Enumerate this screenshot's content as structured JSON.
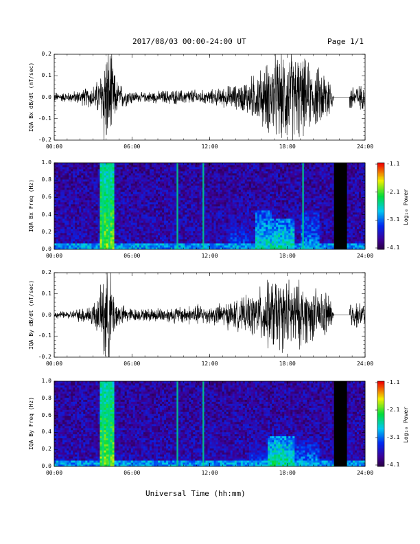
{
  "header": {
    "date_range": "2017/08/03  00:00-24:00 UT",
    "page": "Page 1/1"
  },
  "colorbar": {
    "title": "Log₁₀ Power",
    "ticks": [
      "-1.1",
      "-2.1",
      "-3.1",
      "-4.1"
    ],
    "range": [
      -4.1,
      -1.1
    ]
  },
  "xaxis_label": "Universal Time (hh:mm)",
  "chart_data": [
    {
      "type": "line",
      "ylabel": "IQA Bx dB/dt (nT/sec)",
      "xlabel": "",
      "x_ticks": [
        "00:00",
        "06:00",
        "12:00",
        "18:00",
        "24:00"
      ],
      "y_ticks": [
        "0.2",
        "0.1",
        "0.0",
        "-0.1",
        "-0.2"
      ],
      "xlim": [
        0,
        24
      ],
      "ylim": [
        -0.2,
        0.2
      ],
      "series": [
        {
          "x": [
            0,
            0.5,
            1,
            1.5,
            2,
            2.5,
            3,
            3.5,
            3.7,
            3.85,
            4,
            4.2,
            4.4,
            4.6,
            4.8,
            5,
            5.5,
            6,
            6.5,
            7,
            7.5,
            8,
            8.5,
            9,
            9.5,
            10,
            10.5,
            11,
            11.5,
            12,
            12.5,
            13,
            13.5,
            14,
            14.5,
            15,
            15.5,
            16,
            16.5,
            17,
            17.5,
            18,
            18.5,
            19,
            19.5,
            20,
            20.5,
            21,
            21.3,
            21.6,
            22,
            22.8,
            23,
            23.5,
            24
          ],
          "amplitude": [
            0.02,
            0.02,
            0.02,
            0.025,
            0.03,
            0.04,
            0.05,
            0.08,
            0.15,
            0.22,
            0.22,
            0.22,
            0.2,
            0.12,
            0.08,
            0.06,
            0.04,
            0.03,
            0.02,
            0.02,
            0.025,
            0.025,
            0.03,
            0.03,
            0.03,
            0.03,
            0.035,
            0.03,
            0.03,
            0.03,
            0.035,
            0.04,
            0.05,
            0.05,
            0.06,
            0.08,
            0.1,
            0.12,
            0.15,
            0.18,
            0.18,
            0.2,
            0.2,
            0.17,
            0.15,
            0.13,
            0.12,
            0.12,
            0.1,
            0.0,
            0.0,
            0.06,
            0.06,
            0.05,
            0.05
          ]
        }
      ],
      "flat_gap": [
        21.8,
        22.8
      ]
    },
    {
      "type": "heatmap",
      "ylabel": "IQA Bx Freq (Hz)",
      "xlabel": "",
      "x_ticks": [
        "00:00",
        "06:00",
        "12:00",
        "18:00",
        "24:00"
      ],
      "y_ticks": [
        "1.0",
        "0.8",
        "0.6",
        "0.4",
        "0.2",
        "0.0"
      ],
      "xlim": [
        0,
        24
      ],
      "ylim": [
        0,
        1.0
      ],
      "bright_lines": [
        3.75,
        4.25,
        9.5,
        11.5,
        19.2
      ],
      "data_gap": [
        21.6,
        22.6
      ],
      "activity": [
        {
          "x0": 3.5,
          "x1": 4.6,
          "y_top": 1.0,
          "level": -2.0
        },
        {
          "x0": 15.5,
          "x1": 16.8,
          "y_top": 0.45,
          "level": -2.6
        },
        {
          "x0": 16.8,
          "x1": 18.5,
          "y_top": 0.35,
          "level": -2.5
        },
        {
          "x0": 19.0,
          "x1": 20.5,
          "y_top": 0.45,
          "level": -2.9
        },
        {
          "x0": 13.5,
          "x1": 15.0,
          "y_top": 0.35,
          "level": -3.1
        }
      ]
    },
    {
      "type": "line",
      "ylabel": "IQA By dB/dt (nT/sec)",
      "xlabel": "",
      "x_ticks": [
        "00:00",
        "06:00",
        "12:00",
        "18:00",
        "24:00"
      ],
      "y_ticks": [
        "0.2",
        "0.1",
        "0.0",
        "-0.1",
        "-0.2"
      ],
      "xlim": [
        0,
        24
      ],
      "ylim": [
        -0.2,
        0.2
      ],
      "series": [
        {
          "x": [
            0,
            0.5,
            1,
            1.5,
            2,
            2.5,
            3,
            3.5,
            3.7,
            3.85,
            4,
            4.2,
            4.4,
            4.6,
            4.8,
            5,
            5.5,
            6,
            6.5,
            7,
            7.5,
            8,
            8.5,
            9,
            9.5,
            10,
            10.5,
            11,
            11.5,
            12,
            12.5,
            13,
            13.5,
            14,
            14.5,
            15,
            15.5,
            16,
            16.5,
            17,
            17.5,
            18,
            18.5,
            19,
            19.5,
            20,
            20.5,
            21,
            21.3,
            21.6,
            22,
            22.8,
            23,
            23.5,
            24
          ],
          "amplitude": [
            0.015,
            0.015,
            0.015,
            0.02,
            0.03,
            0.04,
            0.05,
            0.09,
            0.15,
            0.22,
            0.22,
            0.22,
            0.18,
            0.1,
            0.07,
            0.05,
            0.035,
            0.03,
            0.025,
            0.025,
            0.03,
            0.03,
            0.03,
            0.035,
            0.035,
            0.04,
            0.04,
            0.045,
            0.04,
            0.04,
            0.045,
            0.05,
            0.06,
            0.06,
            0.07,
            0.08,
            0.1,
            0.12,
            0.14,
            0.16,
            0.15,
            0.15,
            0.15,
            0.14,
            0.12,
            0.11,
            0.1,
            0.1,
            0.08,
            0.0,
            0.0,
            0.06,
            0.06,
            0.05,
            0.05
          ]
        }
      ],
      "flat_gap": [
        21.8,
        22.8
      ]
    },
    {
      "type": "heatmap",
      "ylabel": "IQA By Freq (Hz)",
      "xlabel": "Universal Time (hh:mm)",
      "x_ticks": [
        "00:00",
        "06:00",
        "12:00",
        "18:00",
        "24:00"
      ],
      "y_ticks": [
        "1.0",
        "0.8",
        "0.6",
        "0.4",
        "0.2",
        "0.0"
      ],
      "xlim": [
        0,
        24
      ],
      "ylim": [
        0,
        1.0
      ],
      "bright_lines": [
        3.75,
        4.25,
        9.5,
        11.5
      ],
      "data_gap": [
        21.6,
        22.6
      ],
      "activity": [
        {
          "x0": 3.5,
          "x1": 4.6,
          "y_top": 1.0,
          "level": -2.0
        },
        {
          "x0": 16.5,
          "x1": 18.5,
          "y_top": 0.35,
          "level": -2.4
        },
        {
          "x0": 18.5,
          "x1": 20.5,
          "y_top": 0.3,
          "level": -2.9
        },
        {
          "x0": 15.0,
          "x1": 16.5,
          "y_top": 0.25,
          "level": -3.1
        },
        {
          "x0": 11.5,
          "x1": 15.0,
          "y_top": 0.15,
          "level": -3.3
        }
      ]
    }
  ]
}
